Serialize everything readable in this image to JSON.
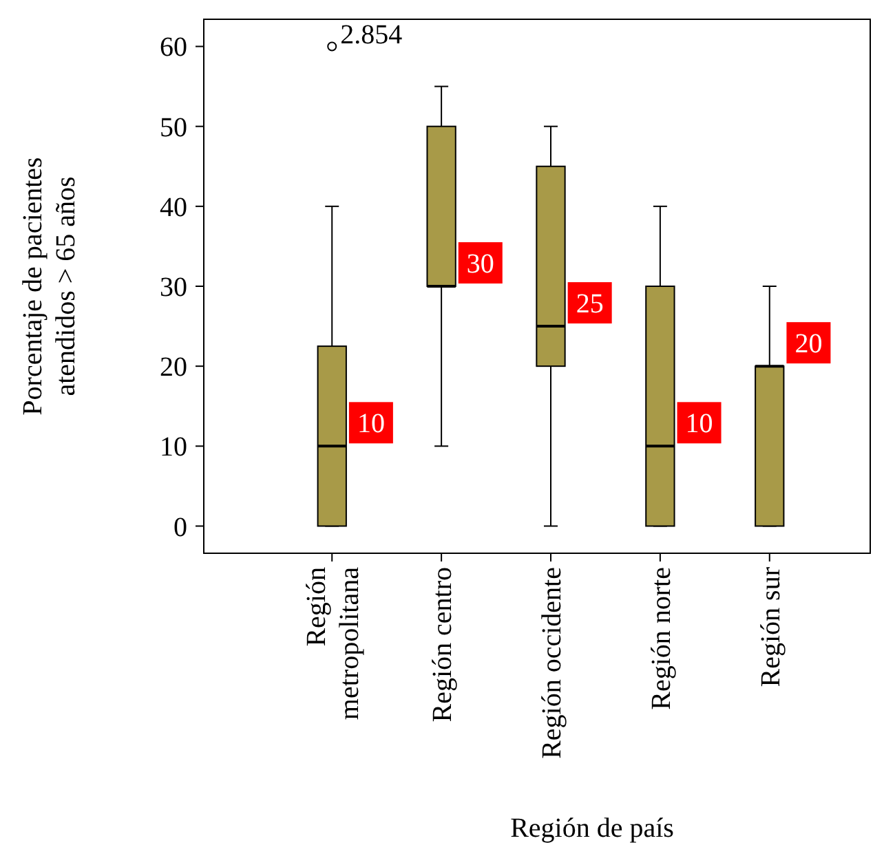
{
  "chart_data": {
    "type": "box",
    "xlabel": "Región de país",
    "ylabel": "Porcentaje de pacientes atendidos > 65 años",
    "categories": [
      "Región metropolitana",
      "Región centro",
      "Región occidente",
      "Región norte",
      "Región sur"
    ],
    "color": "#a89a48",
    "boxes": [
      {
        "low": 0,
        "q1": 0,
        "median": 10,
        "q3": 22.5,
        "high": 40,
        "outliers": [
          60
        ]
      },
      {
        "low": 10,
        "q1": 30,
        "median": 30,
        "q3": 50,
        "high": 55
      },
      {
        "low": 0,
        "q1": 20,
        "median": 25,
        "q3": 45,
        "high": 50
      },
      {
        "low": 0,
        "q1": 0,
        "median": 10,
        "q3": 30,
        "high": 40
      },
      {
        "low": 0,
        "q1": 0,
        "median": 20,
        "q3": 20,
        "high": 30
      }
    ],
    "value_labels": [
      "10",
      "30",
      "25",
      "10",
      "20"
    ],
    "annotations": [
      "2.854"
    ],
    "ylim": [
      -3.4,
      63.4
    ],
    "yticks": [
      0,
      10,
      20,
      30,
      40,
      50,
      60
    ],
    "grid": false
  }
}
